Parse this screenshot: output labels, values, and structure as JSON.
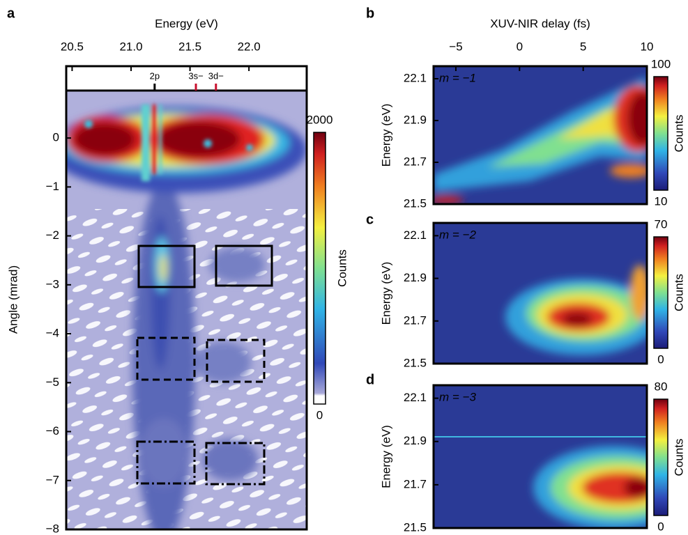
{
  "chart_data": [
    {
      "type": "heatmap",
      "panel_label": "a",
      "xlabel": "Energy (eV)",
      "xlim": [
        20.45,
        22.49
      ],
      "xticks": [
        20.5,
        {
          "value": 21,
          "label": "21.0"
        },
        21.5,
        {
          "value": 22,
          "label": "22.0"
        }
      ],
      "ylabel": "Angle (mrad)",
      "ylim": [
        -8,
        0.97
      ],
      "yticks": [
        {
          "value": -8,
          "label": "−8"
        },
        {
          "value": -7,
          "label": "−7"
        },
        {
          "value": -6,
          "label": "−6"
        },
        {
          "value": -5,
          "label": "−5"
        },
        {
          "value": -4,
          "label": "−4"
        },
        {
          "value": -3,
          "label": "−3"
        },
        {
          "value": -2,
          "label": "−2"
        },
        {
          "value": -1,
          "label": "−1"
        },
        0
      ],
      "annotations": [
        {
          "text": "2p",
          "x": 21.2,
          "color": "#000000"
        },
        {
          "text": "3s−",
          "x": 21.55,
          "color": "#c8102e"
        },
        {
          "text": "3d−",
          "x": 21.72,
          "color": "#c8102e"
        }
      ],
      "colorbar": {
        "label": "Counts",
        "lim": [
          0,
          2000
        ],
        "ticks": [
          0,
          2000
        ]
      }
    },
    {
      "type": "heatmap",
      "panel_label": "b",
      "xlabel": "XUV-NIR delay (fs)",
      "xlim": [
        -6.75,
        10
      ],
      "xticks": [
        {
          "value": -5,
          "label": "−5"
        },
        0,
        5,
        10
      ],
      "ylabel": "Energy (eV)",
      "ylim": [
        21.5,
        22.16
      ],
      "yticks": [
        21.5,
        21.7,
        21.9,
        22.1
      ],
      "annotation": "m = −1",
      "colorbar": {
        "label": "Counts",
        "lim": [
          10,
          100
        ],
        "ticks": [
          10,
          100
        ]
      }
    },
    {
      "type": "heatmap",
      "panel_label": "c",
      "xlim": [
        -6.75,
        10
      ],
      "ylabel": "Energy (eV)",
      "ylim": [
        21.5,
        22.16
      ],
      "yticks": [
        21.5,
        21.7,
        21.9,
        22.1
      ],
      "annotation": "m = −2",
      "colorbar": {
        "label": "Counts",
        "lim": [
          0,
          70
        ],
        "ticks": [
          0,
          70
        ]
      }
    },
    {
      "type": "heatmap",
      "panel_label": "d",
      "xlim": [
        -6.75,
        10
      ],
      "ylabel": "Energy (eV)",
      "ylim": [
        21.5,
        22.16
      ],
      "yticks": [
        21.5,
        21.7,
        21.9,
        22.1
      ],
      "annotation": "m = −3",
      "colorbar": {
        "label": "Counts",
        "lim": [
          0,
          80
        ],
        "ticks": [
          0,
          80
        ]
      }
    }
  ]
}
